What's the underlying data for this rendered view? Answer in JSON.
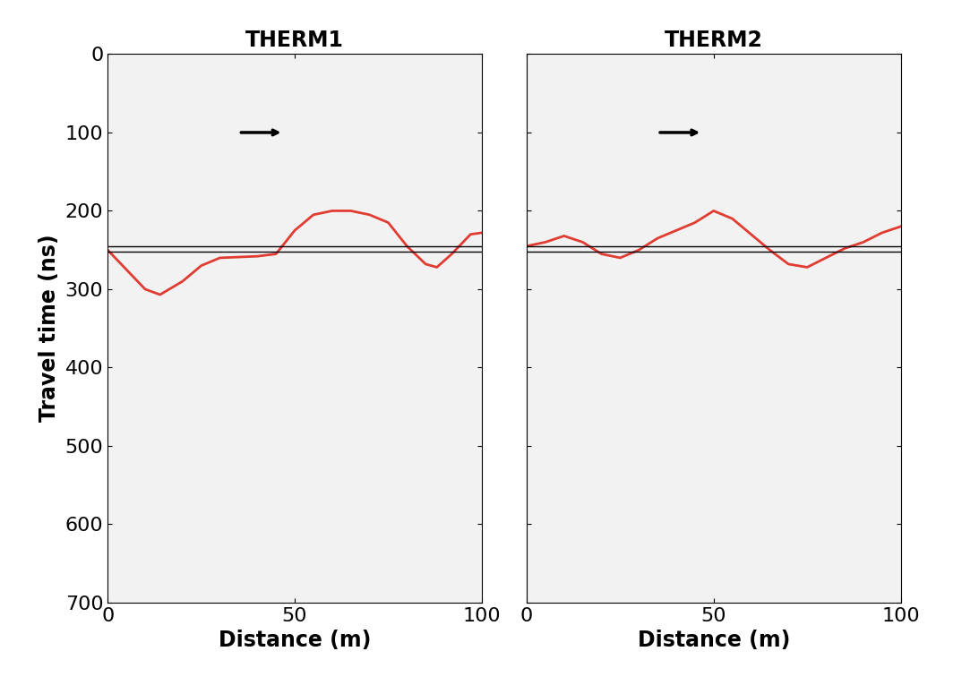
{
  "chart_data": [
    {
      "type": "line",
      "title": "THERM1",
      "xlabel": "Distance (m)",
      "ylabel": "Travel time (ns)",
      "xlim": [
        0,
        100
      ],
      "xticks": [
        0,
        50,
        100
      ],
      "ylim": [
        700,
        0
      ],
      "yticks": [
        0,
        100,
        200,
        300,
        400,
        500,
        600,
        700
      ],
      "tick_labels": true,
      "series": [
        {
          "color": "#e03c31",
          "x": [
            0,
            5,
            10,
            14,
            20,
            25,
            30,
            40,
            45,
            50,
            55,
            60,
            65,
            70,
            75,
            80,
            85,
            88,
            92,
            97,
            100
          ],
          "values": [
            250,
            275,
            300,
            307,
            290,
            270,
            260,
            258,
            255,
            225,
            205,
            200,
            200,
            205,
            215,
            245,
            268,
            272,
            255,
            230,
            228
          ]
        }
      ],
      "hlines": [
        245,
        252
      ],
      "arrow": {
        "x": 47,
        "y": 100
      }
    },
    {
      "type": "line",
      "title": "THERM2",
      "xlabel": "Distance (m)",
      "xlim": [
        0,
        100
      ],
      "xticks": [
        0,
        50,
        100
      ],
      "ylim": [
        700,
        0
      ],
      "yticks": [
        0,
        100,
        200,
        300,
        400,
        500,
        600,
        700
      ],
      "tick_labels": "x",
      "series": [
        {
          "color": "#e03c31",
          "x": [
            0,
            5,
            10,
            15,
            20,
            25,
            30,
            35,
            40,
            45,
            50,
            55,
            60,
            65,
            70,
            75,
            80,
            85,
            90,
            95,
            100
          ],
          "values": [
            245,
            240,
            232,
            240,
            255,
            260,
            250,
            235,
            225,
            215,
            200,
            210,
            230,
            250,
            268,
            272,
            260,
            248,
            240,
            228,
            220
          ]
        }
      ],
      "hlines": [
        245,
        252
      ],
      "arrow": {
        "x": 47,
        "y": 100
      }
    }
  ]
}
